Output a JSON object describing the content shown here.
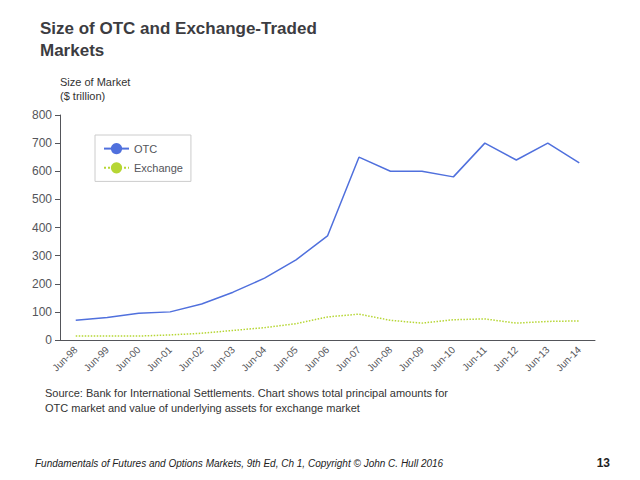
{
  "chart_data": {
    "type": "line",
    "title": "Size of OTC and Exchange-Traded\nMarkets",
    "y_label": "Size of Market\n($ trillion)",
    "annotations": [
      "Source: Bank for International Settlements. Chart shows total principal amounts for\nOTC market and value of underlying assets for exchange market",
      "Fundamentals of Futures and Options Markets, 9th Ed, Ch 1, Copyright © John C. Hull 2016",
      "13"
    ],
    "categories": [
      "Jun-98",
      "Jun-99",
      "Jun-00",
      "Jun-01",
      "Jun-02",
      "Jun-03",
      "Jun-04",
      "Jun-05",
      "Jun-06",
      "Jun-07",
      "Jun-08",
      "Jun-09",
      "Jun-10",
      "Jun-11",
      "Jun-12",
      "Jun-13",
      "Jun-14"
    ],
    "series": [
      {
        "name": "OTC",
        "line_style": "solid",
        "values": [
          70,
          80,
          95,
          100,
          128,
          170,
          220,
          285,
          370,
          650,
          600,
          600,
          580,
          700,
          640,
          700,
          630
        ]
      },
      {
        "name": "Exchange",
        "line_style": "dotted",
        "values": [
          14,
          14,
          14,
          18,
          24,
          34,
          44,
          58,
          82,
          92,
          70,
          60,
          72,
          75,
          60,
          66,
          68
        ]
      }
    ],
    "ylim": [
      0,
      800
    ],
    "yticks": [
      0,
      100,
      200,
      300,
      400,
      500,
      600,
      700,
      800
    ],
    "grid": false,
    "legend": "upper left"
  }
}
